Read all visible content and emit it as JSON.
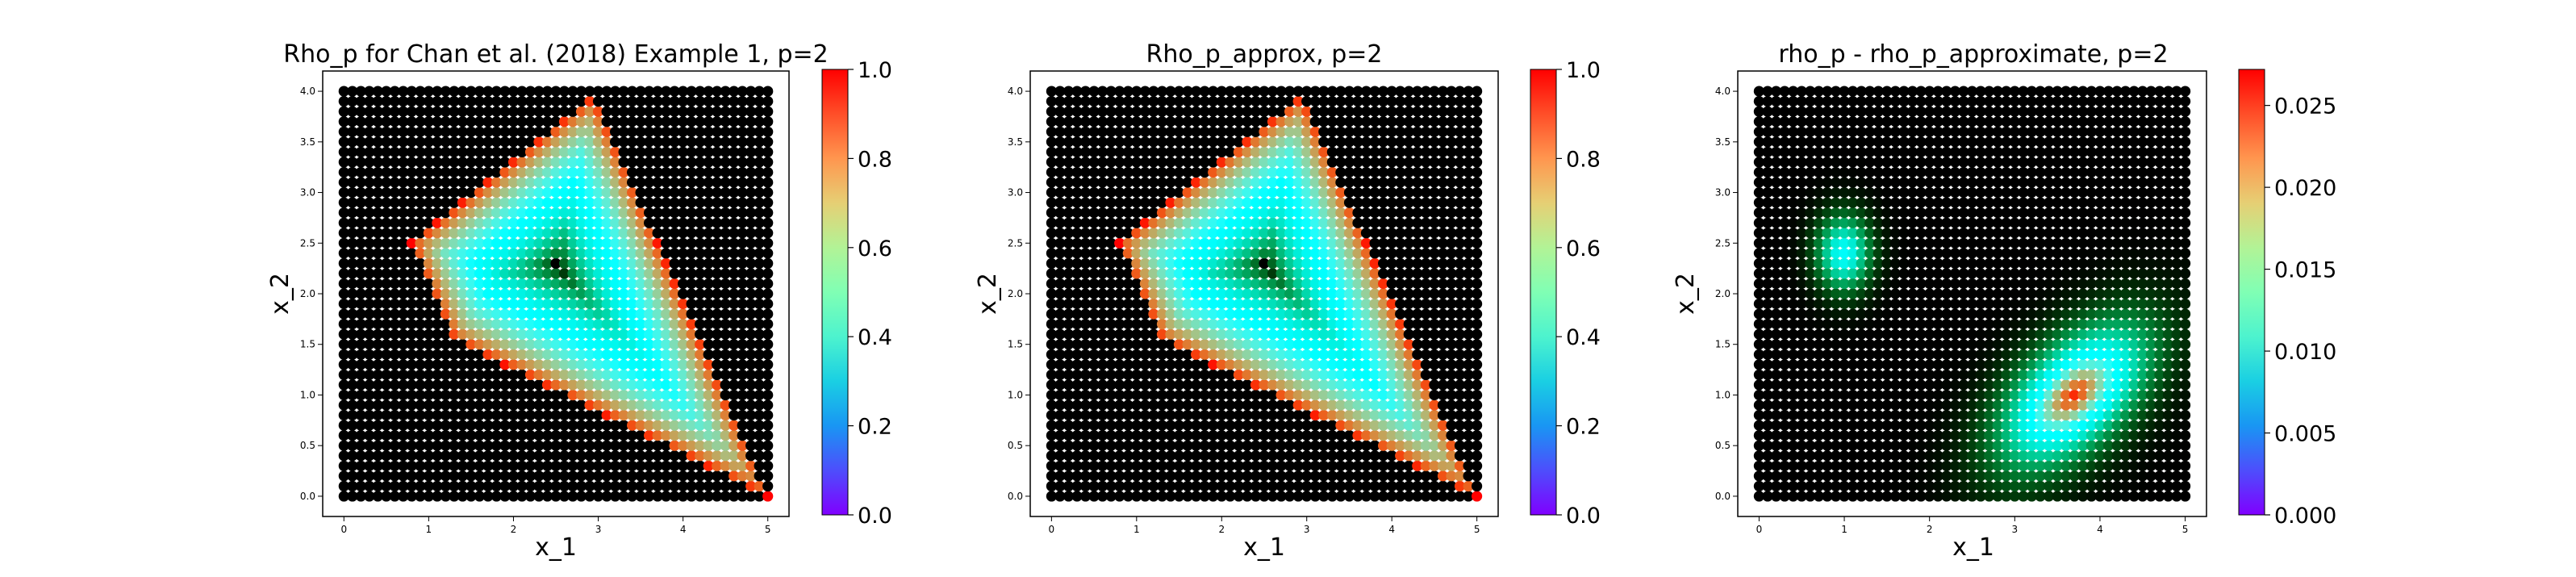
{
  "chart_data": [
    {
      "type": "heatmap",
      "title": "Rho_p for Chan et al. (2018) Example 1, p=2",
      "xlabel": "x_1",
      "ylabel": "x_2",
      "xlim": [
        -0.25,
        5.25
      ],
      "ylim": [
        -0.2,
        4.2
      ],
      "xticks": [
        "0",
        "1",
        "2",
        "3",
        "4",
        "5"
      ],
      "yticks": [
        "0.0",
        "0.5",
        "1.0",
        "1.5",
        "2.0",
        "2.5",
        "3.0",
        "3.5",
        "4.0"
      ],
      "grid_domain": {
        "x": [
          0,
          5
        ],
        "y": [
          0,
          4
        ]
      },
      "region_vertices": [
        [
          0.8,
          2.5
        ],
        [
          2.95,
          3.95
        ],
        [
          5.0,
          0.0
        ],
        [
          1.3,
          1.55
        ]
      ],
      "peak": [
        2.5,
        2.3
      ],
      "colormap": "rainbow",
      "colorbar": {
        "min": 0.0,
        "max": 1.0,
        "ticks": [
          "0.0",
          "0.2",
          "0.4",
          "0.6",
          "0.8",
          "1.0"
        ]
      }
    },
    {
      "type": "heatmap",
      "title": "Rho_p_approx, p=2",
      "xlabel": "x_1",
      "ylabel": "x_2",
      "xlim": [
        -0.25,
        5.25
      ],
      "ylim": [
        -0.2,
        4.2
      ],
      "xticks": [
        "0",
        "1",
        "2",
        "3",
        "4",
        "5"
      ],
      "yticks": [
        "0.0",
        "0.5",
        "1.0",
        "1.5",
        "2.0",
        "2.5",
        "3.0",
        "3.5",
        "4.0"
      ],
      "grid_domain": {
        "x": [
          0,
          5
        ],
        "y": [
          0,
          4
        ]
      },
      "region_vertices": [
        [
          0.8,
          2.5
        ],
        [
          2.95,
          3.95
        ],
        [
          5.0,
          0.0
        ],
        [
          1.3,
          1.55
        ]
      ],
      "peak": [
        2.5,
        2.3
      ],
      "colormap": "rainbow",
      "colorbar": {
        "min": 0.0,
        "max": 1.0,
        "ticks": [
          "0.0",
          "0.2",
          "0.4",
          "0.6",
          "0.8",
          "1.0"
        ]
      }
    },
    {
      "type": "heatmap",
      "title": "rho_p - rho_p_approximate, p=2",
      "xlabel": "x_1",
      "ylabel": "x_2",
      "xlim": [
        -0.25,
        5.25
      ],
      "ylim": [
        -0.2,
        4.2
      ],
      "xticks": [
        "0",
        "1",
        "2",
        "3",
        "4",
        "5"
      ],
      "yticks": [
        "0.0",
        "0.5",
        "1.0",
        "1.5",
        "2.0",
        "2.5",
        "3.0",
        "3.5",
        "4.0"
      ],
      "grid_domain": {
        "x": [
          0,
          5
        ],
        "y": [
          0,
          4
        ]
      },
      "hotspots": [
        {
          "center": [
            1.0,
            2.4
          ],
          "peak_value": 0.012
        },
        {
          "center": [
            3.7,
            1.0
          ],
          "peak_value": 0.027
        }
      ],
      "colormap": "rainbow",
      "colorbar": {
        "min": 0.0,
        "max": 0.0272,
        "ticks": [
          "0.000",
          "0.005",
          "0.010",
          "0.015",
          "0.020",
          "0.025"
        ]
      }
    }
  ]
}
